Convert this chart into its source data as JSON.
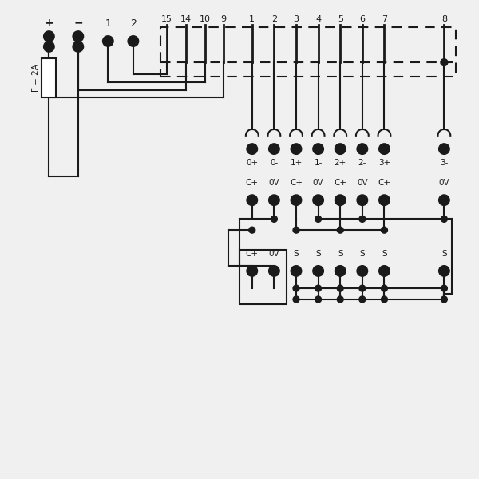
{
  "bg_color": "#f0f0f0",
  "line_color": "#1a1a1a",
  "fuse_label": "F = 2A",
  "dashed_labels": [
    "15",
    "14",
    "10",
    "9",
    "1",
    "2",
    "3",
    "4",
    "5",
    "6",
    "7",
    "8"
  ],
  "row1_labels": [
    "0+",
    "0-",
    "1+",
    "1-",
    "2+",
    "2-",
    "3+",
    "3-"
  ],
  "row2_labels": [
    "C+",
    "0V",
    "C+",
    "0V",
    "C+",
    "0V",
    "C+",
    "0V"
  ],
  "row3_labels": [
    "C+",
    "0V",
    "S",
    "S",
    "S",
    "S",
    "S",
    "S"
  ]
}
